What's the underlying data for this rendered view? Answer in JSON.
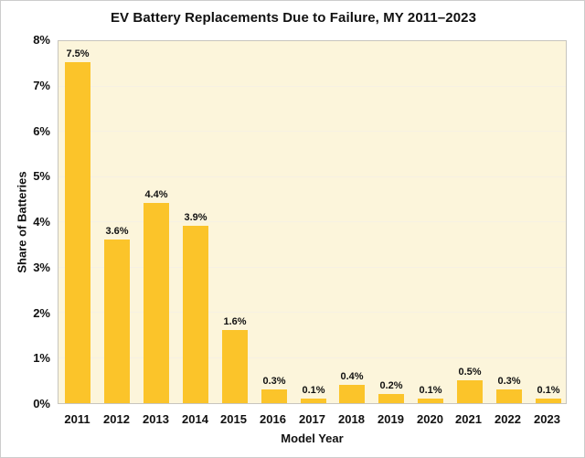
{
  "chart_data": {
    "type": "bar",
    "title": "EV Battery Replacements Due to Failure, MY 2011–2023",
    "xlabel": "Model Year",
    "ylabel": "Share of Batteries",
    "categories": [
      "2011",
      "2012",
      "2013",
      "2014",
      "2015",
      "2016",
      "2017",
      "2018",
      "2019",
      "2020",
      "2021",
      "2022",
      "2023"
    ],
    "values": [
      7.5,
      3.6,
      4.4,
      3.9,
      1.6,
      0.3,
      0.1,
      0.4,
      0.2,
      0.1,
      0.5,
      0.3,
      0.1
    ],
    "bar_labels": [
      "7.5%",
      "3.6%",
      "4.4%",
      "3.9%",
      "1.6%",
      "0.3%",
      "0.1%",
      "0.4%",
      "0.2%",
      "0.1%",
      "0.5%",
      "0.3%",
      "0.1%"
    ],
    "y_ticks": [
      "0%",
      "1%",
      "2%",
      "3%",
      "4%",
      "5%",
      "6%",
      "7%",
      "8%"
    ],
    "ylim": [
      0,
      8
    ],
    "grid": "horizontal",
    "legend": "none",
    "colors": {
      "bar": "#FBC42A",
      "plot_background": "#FCF5DB",
      "grid_line": "#F6F1E3",
      "plot_border": "#C7C5BE",
      "text": "#111111",
      "figure_background": "#FFFFFF"
    }
  }
}
